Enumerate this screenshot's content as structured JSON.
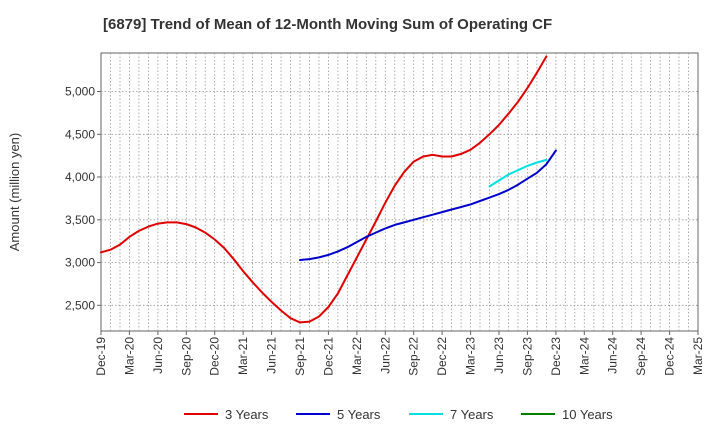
{
  "chart_data": {
    "type": "line",
    "title": "[6879]  Trend of Mean of 12-Month Moving Sum of Operating CF",
    "xlabel": "",
    "ylabel": "Amount (million yen)",
    "ylim": [
      2200,
      5450
    ],
    "yticks": [
      2500,
      3000,
      3500,
      4000,
      4500,
      5000
    ],
    "ytick_labels": [
      "2,500",
      "3,000",
      "3,500",
      "4,000",
      "4,500",
      "5,000"
    ],
    "grid": true,
    "legend_position": "bottom",
    "x_categories": [
      "Dec-19",
      "Mar-20",
      "Jun-20",
      "Sep-20",
      "Dec-20",
      "Mar-21",
      "Jun-21",
      "Sep-21",
      "Dec-21",
      "Mar-22",
      "Jun-22",
      "Sep-22",
      "Dec-22",
      "Mar-23",
      "Jun-23",
      "Sep-23",
      "Dec-23",
      "Mar-24",
      "Jun-24",
      "Sep-24",
      "Dec-24",
      "Mar-25"
    ],
    "series": [
      {
        "name": "3 Years",
        "color": "#e00000",
        "start_index": 0,
        "values": [
          3120,
          3150,
          3210,
          3300,
          3370,
          3420,
          3455,
          3470,
          3470,
          3450,
          3410,
          3350,
          3270,
          3170,
          3040,
          2900,
          2770,
          2650,
          2540,
          2440,
          2350,
          2300,
          2310,
          2370,
          2480,
          2640,
          2850,
          3060,
          3270,
          3480,
          3700,
          3900,
          4060,
          4180,
          4240,
          4260,
          4240,
          4240,
          4270,
          4320,
          4400,
          4500,
          4610,
          4740,
          4880,
          5040,
          5220,
          5410
        ]
      },
      {
        "name": "5 Years",
        "color": "#0000cc",
        "start_index": 21,
        "values": [
          3030,
          3040,
          3060,
          3090,
          3130,
          3180,
          3240,
          3300,
          3350,
          3400,
          3440,
          3470,
          3500,
          3530,
          3560,
          3590,
          3620,
          3650,
          3680,
          3720,
          3760,
          3800,
          3850,
          3910,
          3980,
          4050,
          4150,
          4310
        ]
      },
      {
        "name": "7 Years",
        "color": "#00e0e0",
        "start_index": 41,
        "values": [
          3890,
          3960,
          4030,
          4080,
          4130,
          4170,
          4200
        ]
      },
      {
        "name": "10 Years",
        "color": "#008000",
        "start_index": 0,
        "values": []
      }
    ]
  }
}
